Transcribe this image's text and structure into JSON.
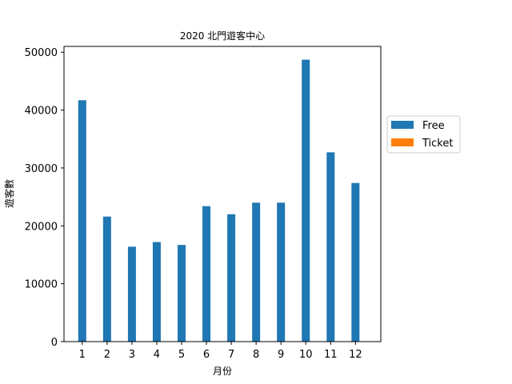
{
  "chart_data": {
    "type": "bar",
    "title": "2020 北門遊客中心",
    "xlabel": "月份",
    "ylabel": "遊客數",
    "categories": [
      "1",
      "2",
      "3",
      "4",
      "5",
      "6",
      "7",
      "8",
      "9",
      "10",
      "11",
      "12"
    ],
    "series": [
      {
        "name": "Free",
        "color": "#1f77b4",
        "values": [
          41700,
          21600,
          16400,
          17200,
          16700,
          23400,
          22000,
          24000,
          24000,
          48700,
          32700,
          27400
        ]
      },
      {
        "name": "Ticket",
        "color": "#ff7f0e",
        "values": [
          0,
          0,
          0,
          0,
          0,
          0,
          0,
          0,
          0,
          0,
          0,
          0
        ]
      }
    ],
    "ylim": [
      0,
      51000
    ],
    "yticks": [
      0,
      10000,
      20000,
      30000,
      40000,
      50000
    ],
    "grid": false,
    "legend_position": "outside-right"
  }
}
